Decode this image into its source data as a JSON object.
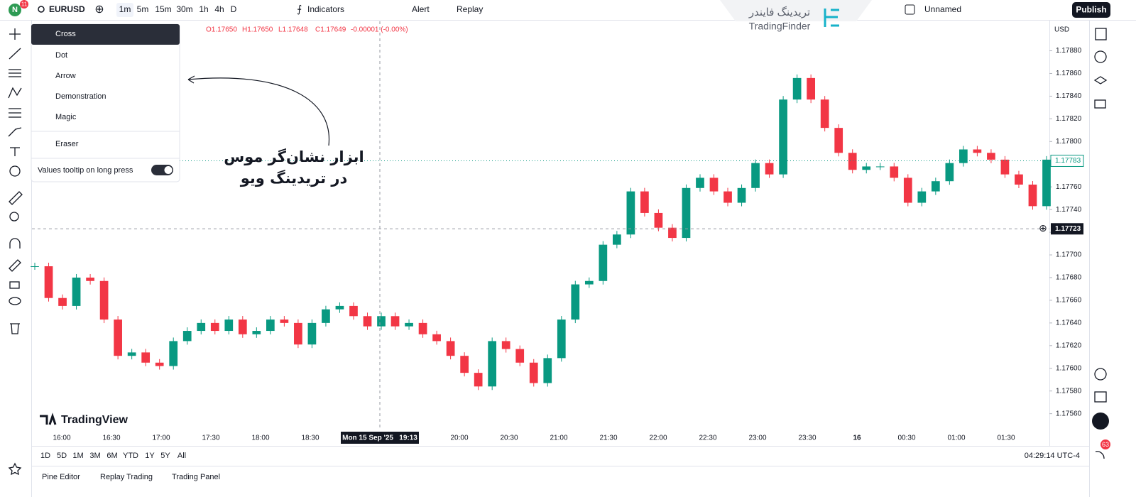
{
  "toolbar": {
    "badge": "11",
    "symbol": "EURUSD",
    "intervals": [
      "1m",
      "5m",
      "15m",
      "30m",
      "1h",
      "4h",
      "D"
    ],
    "indicators": "Indicators",
    "alert": "Alert",
    "replay": "Replay",
    "layout_name": "Unnamed",
    "publish": "Publish"
  },
  "watermark": {
    "fa": "تریدینگ فایندر",
    "en": "TradingFinder"
  },
  "cursor_menu": {
    "items": [
      "Cross",
      "Dot",
      "Arrow",
      "Demonstration",
      "Magic",
      "Eraser"
    ],
    "toggle": "Values tooltip on long press"
  },
  "annotation": {
    "lines": [
      "ابزار نشان‌گر موس",
      "در تریدینگ ویو"
    ]
  },
  "chart_data": {
    "type": "candlestick",
    "currency": "USD",
    "logo": "TradingView",
    "ohlc": [
      "O1.17650",
      "H1.17650",
      "L1.17648",
      "C1.17649",
      "-0.00001 (-0.00%)"
    ],
    "up_color": "#089981",
    "down_color": "#f23645",
    "close": [
      1.1769,
      1.17662,
      1.17655,
      1.1768,
      1.17677,
      1.17643,
      1.17611,
      1.17614,
      1.17605,
      1.17602,
      1.17624,
      1.17633,
      1.1764,
      1.17633,
      1.17643,
      1.1763,
      1.17633,
      1.17643,
      1.1764,
      1.17621,
      1.1764,
      1.17652,
      1.17655,
      1.17646,
      1.17637,
      1.17646,
      1.17637,
      1.1764,
      1.1763,
      1.17624,
      1.17611,
      1.17596,
      1.17584,
      1.17624,
      1.17617,
      1.17605,
      1.17587,
      1.17609,
      1.17643,
      1.17674,
      1.17677,
      1.17709,
      1.17718,
      1.17756,
      1.17737,
      1.17724,
      1.17715,
      1.17759,
      1.17768,
      1.17756,
      1.17746,
      1.17759,
      1.17781,
      1.17771,
      1.17837,
      1.17856,
      1.17837,
      1.17812,
      1.1779,
      1.17775,
      1.17778,
      1.17778,
      1.17768,
      1.17746,
      1.17756,
      1.17765,
      1.17781,
      1.17793,
      1.1779,
      1.17784,
      1.17771,
      1.17762,
      1.17743,
      1.17784
    ],
    "ylim": [
      1.17546,
      1.17906
    ],
    "yticks": [
      {
        "value": 1.1756,
        "label": "1.17560"
      },
      {
        "value": 1.1758,
        "label": "1.17580"
      },
      {
        "value": 1.176,
        "label": "1.17600"
      },
      {
        "value": 1.1762,
        "label": "1.17620"
      },
      {
        "value": 1.1764,
        "label": "1.17640"
      },
      {
        "value": 1.1766,
        "label": "1.17660"
      },
      {
        "value": 1.1768,
        "label": "1.17680"
      },
      {
        "value": 1.177,
        "label": "1.17700"
      },
      {
        "value": 1.1772,
        "label": "1.17720"
      },
      {
        "value": 1.1774,
        "label": "1.17740"
      },
      {
        "value": 1.1776,
        "label": "1.17760"
      },
      {
        "value": 1.1778,
        "label": "1.17780"
      },
      {
        "value": 1.178,
        "label": "1.17800"
      },
      {
        "value": 1.1782,
        "label": "1.17820"
      },
      {
        "value": 1.1784,
        "label": "1.17840"
      },
      {
        "value": 1.1786,
        "label": "1.17860"
      },
      {
        "value": 1.1788,
        "label": "1.17880"
      }
    ],
    "xticks": [
      "16:00",
      "16:30",
      "17:00",
      "17:30",
      "18:00",
      "18:30",
      null,
      null,
      "20:00",
      "20:30",
      "21:00",
      "21:30",
      "22:00",
      "22:30",
      "23:00",
      "23:30",
      "16",
      "00:30",
      "01:00",
      "01:30"
    ],
    "crosshair": {
      "time": "Mon 15 Sep '25   19:13",
      "price": 1.17723
    },
    "last_price": 1.17783
  },
  "bottom": {
    "ranges": [
      "1D",
      "5D",
      "1M",
      "3M",
      "6M",
      "YTD",
      "1Y",
      "5Y",
      "All"
    ],
    "clock": "04:29:14 UTC-4",
    "tabs": [
      "Pine Editor",
      "Replay Trading",
      "Trading Panel"
    ],
    "notifications": "63"
  }
}
